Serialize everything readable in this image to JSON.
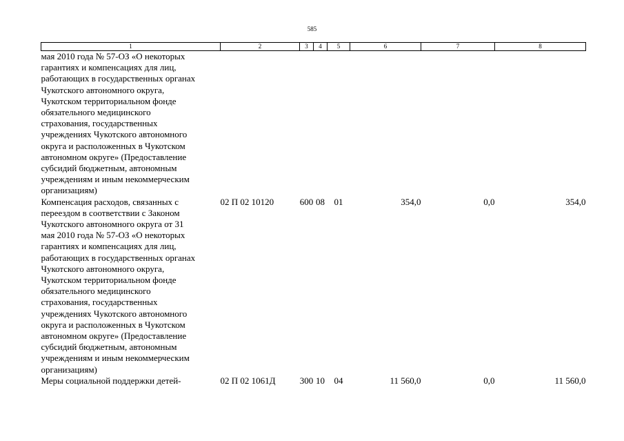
{
  "page_number": "585",
  "header": [
    "1",
    "2",
    "3",
    "4",
    "5",
    "6",
    "7",
    "8"
  ],
  "rows": [
    {
      "lines": [
        "мая 2010 года № 57-ОЗ «О некоторых",
        "гарантиях и компенсациях для лиц,",
        "работающих в государственных органах",
        "Чукотского автономного округа,",
        "Чукотском территориальном фонде",
        "обязательного медицинского",
        "страхования, государственных",
        "учреждениях Чукотского автономного",
        "округа и расположенных в Чукотском",
        "автономном округе» (Предоставлeние",
        "субсидий бюджетным, автономным",
        "учреждениям и иным некоммерческим",
        "организациям)"
      ],
      "code": "",
      "c3": "",
      "c4": "",
      "c5": "",
      "c6": "",
      "c7": "",
      "c8": ""
    },
    {
      "lines": [
        "Компенсация расходов, связанных с",
        "переездом в соответствии с Законом",
        "Чукотского автономного округа от 31",
        "мая 2010 года № 57-ОЗ «О некоторых",
        "гарантиях и компенсациях для лиц,",
        "работающих в государственных органах",
        "Чукотского автономного округа,",
        "Чукотском территориальном фонде",
        "обязательного медицинского",
        "страхования, государственных",
        "учреждениях Чукотского автономного",
        "округа и расположенных в Чукотском",
        "автономном округе» (Предоставление",
        "субсидий бюджетным, автономным",
        "учреждениям и иным некоммерческим",
        "организациям)"
      ],
      "code": "02 П 02 10120",
      "c3": "600",
      "c4": "08",
      "c5": "01",
      "c6": "354,0",
      "c7": "0,0",
      "c8": "354,0"
    },
    {
      "lines": [
        "Меры социальной поддержки детей-"
      ],
      "code": "02 П 02 1061Д",
      "c3": "300",
      "c4": "10",
      "c5": "04",
      "c6": "11 560,0",
      "c7": "0,0",
      "c8": "11 560,0"
    }
  ]
}
